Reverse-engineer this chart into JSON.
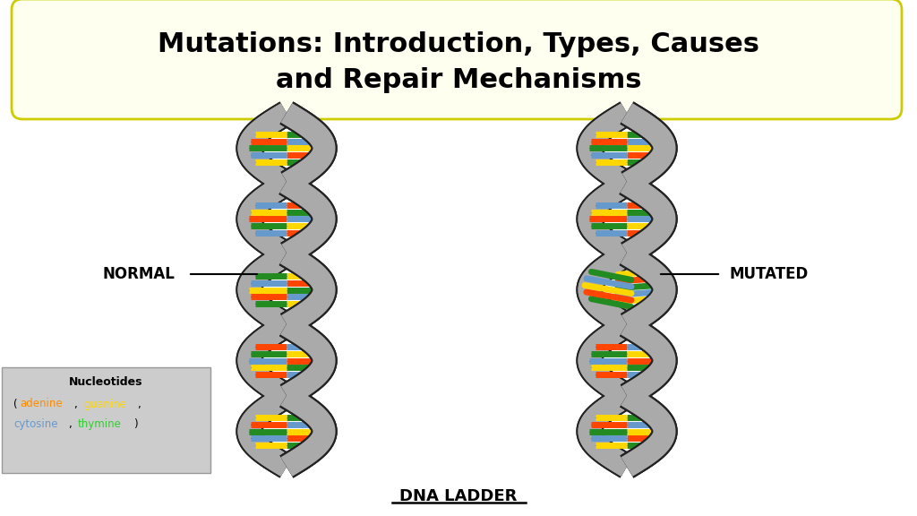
{
  "title_line1": "Mutations: Introduction, Types, Causes",
  "title_line2": "and Repair Mechanisms",
  "title_fontsize": 22,
  "title_box_color": "#fffff0",
  "title_box_edge": "#cccc00",
  "bg_color": "#ffffff",
  "label_normal": "NORMAL",
  "label_mutated": "MUTATED",
  "label_dna": "DNA LADDER",
  "nucleotides_title": "Nucleotides",
  "strand_color": "#aaaaaa",
  "strand_edge": "#222222",
  "adenine_color": "#FF8C00",
  "guanine_color": "#FFD700",
  "cytosine_color": "#6699CC",
  "thymine_color": "#32CD32",
  "red_color": "#FF4500",
  "green_color": "#228B22",
  "rung_edge": "#333333"
}
